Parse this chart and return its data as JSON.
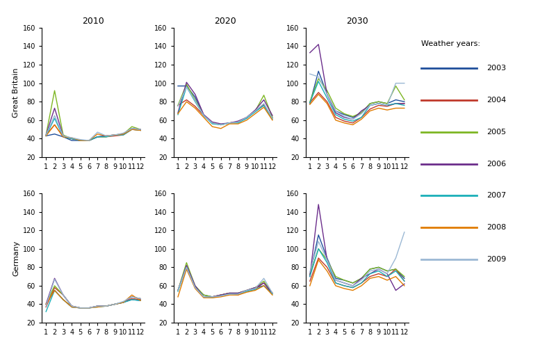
{
  "years": [
    "2010",
    "2020",
    "2030"
  ],
  "regions": [
    "Great Britain",
    "Germany"
  ],
  "weather_years": [
    "2003",
    "2004",
    "2005",
    "2006",
    "2007",
    "2008",
    "2009"
  ],
  "colors": {
    "2003": "#1F4E9B",
    "2004": "#C0392B",
    "2005": "#7DB623",
    "2006": "#6B2D8B",
    "2007": "#1AAFB8",
    "2008": "#E07B00",
    "2009": "#9BB8D4"
  },
  "ylim": [
    20,
    160
  ],
  "yticks": [
    20,
    40,
    60,
    80,
    100,
    120,
    140,
    160
  ],
  "xticks": [
    1,
    2,
    3,
    4,
    5,
    6,
    7,
    8,
    9,
    10,
    11,
    12
  ],
  "data": {
    "Great Britain": {
      "2010": {
        "2003": [
          43,
          45,
          42,
          38,
          38,
          38,
          42,
          43,
          44,
          45,
          51,
          49
        ],
        "2004": [
          44,
          55,
          42,
          40,
          38,
          38,
          42,
          42,
          43,
          44,
          50,
          49
        ],
        "2005": [
          44,
          92,
          44,
          40,
          38,
          38,
          42,
          42,
          44,
          45,
          53,
          50
        ],
        "2006": [
          44,
          73,
          43,
          40,
          38,
          38,
          42,
          43,
          44,
          45,
          51,
          50
        ],
        "2007": [
          43,
          62,
          42,
          40,
          38,
          38,
          42,
          42,
          44,
          44,
          50,
          49
        ],
        "2008": [
          43,
          55,
          42,
          41,
          38,
          38,
          45,
          43,
          44,
          45,
          50,
          49
        ],
        "2009": [
          44,
          65,
          43,
          41,
          39,
          38,
          47,
          43,
          44,
          46,
          51,
          50
        ]
      },
      "2020": {
        "2003": [
          97,
          97,
          85,
          65,
          57,
          55,
          57,
          58,
          62,
          70,
          76,
          63
        ],
        "2004": [
          76,
          82,
          75,
          65,
          57,
          55,
          57,
          58,
          63,
          70,
          77,
          62
        ],
        "2005": [
          76,
          99,
          82,
          65,
          57,
          55,
          57,
          58,
          63,
          70,
          87,
          63
        ],
        "2006": [
          68,
          101,
          88,
          66,
          58,
          56,
          57,
          59,
          63,
          71,
          82,
          65
        ],
        "2007": [
          66,
          96,
          80,
          65,
          56,
          55,
          57,
          57,
          62,
          69,
          76,
          61
        ],
        "2008": [
          67,
          80,
          73,
          63,
          53,
          51,
          56,
          56,
          60,
          67,
          74,
          60
        ],
        "2009": [
          75,
          96,
          81,
          65,
          57,
          55,
          57,
          58,
          63,
          70,
          78,
          62
        ]
      },
      "2030": {
        "2003": [
          78,
          113,
          88,
          70,
          66,
          63,
          68,
          78,
          80,
          78,
          82,
          80
        ],
        "2004": [
          79,
          90,
          80,
          63,
          59,
          57,
          63,
          72,
          76,
          75,
          78,
          78
        ],
        "2005": [
          80,
          105,
          92,
          73,
          67,
          64,
          68,
          78,
          80,
          78,
          97,
          82
        ],
        "2006": [
          133,
          142,
          88,
          68,
          63,
          61,
          70,
          76,
          78,
          76,
          78,
          78
        ],
        "2007": [
          79,
          102,
          84,
          66,
          61,
          59,
          63,
          76,
          78,
          76,
          78,
          76
        ],
        "2008": [
          77,
          88,
          78,
          60,
          57,
          55,
          61,
          70,
          73,
          71,
          73,
          73
        ],
        "2009": [
          110,
          107,
          88,
          70,
          64,
          61,
          67,
          76,
          78,
          76,
          100,
          100
        ]
      }
    },
    "Germany": {
      "2010": {
        "2003": [
          40,
          55,
          45,
          37,
          36,
          36,
          38,
          38,
          40,
          42,
          45,
          44
        ],
        "2004": [
          37,
          58,
          50,
          38,
          36,
          36,
          38,
          38,
          40,
          42,
          46,
          45
        ],
        "2005": [
          40,
          60,
          50,
          38,
          36,
          36,
          38,
          38,
          40,
          42,
          48,
          46
        ],
        "2006": [
          40,
          68,
          50,
          38,
          36,
          36,
          38,
          38,
          40,
          42,
          48,
          46
        ],
        "2007": [
          32,
          55,
          45,
          37,
          36,
          36,
          37,
          38,
          40,
          42,
          45,
          44
        ],
        "2008": [
          40,
          55,
          45,
          37,
          36,
          36,
          37,
          38,
          40,
          42,
          50,
          44
        ],
        "2009": [
          38,
          67,
          50,
          38,
          36,
          36,
          38,
          38,
          40,
          43,
          48,
          46
        ]
      },
      "2020": {
        "2003": [
          55,
          80,
          58,
          50,
          48,
          50,
          52,
          52,
          55,
          58,
          60,
          52
        ],
        "2004": [
          55,
          80,
          58,
          48,
          48,
          50,
          52,
          50,
          55,
          57,
          63,
          52
        ],
        "2005": [
          55,
          85,
          60,
          50,
          48,
          50,
          52,
          52,
          55,
          58,
          65,
          52
        ],
        "2006": [
          55,
          82,
          60,
          48,
          48,
          50,
          52,
          52,
          55,
          58,
          63,
          52
        ],
        "2007": [
          54,
          80,
          58,
          48,
          47,
          49,
          51,
          51,
          54,
          56,
          60,
          51
        ],
        "2008": [
          48,
          78,
          57,
          47,
          47,
          48,
          50,
          50,
          53,
          55,
          60,
          50
        ],
        "2009": [
          55,
          80,
          58,
          48,
          48,
          49,
          51,
          51,
          55,
          57,
          68,
          52
        ]
      },
      "2030": {
        "2003": [
          72,
          115,
          90,
          68,
          66,
          63,
          68,
          78,
          80,
          76,
          78,
          68
        ],
        "2004": [
          65,
          90,
          80,
          63,
          60,
          58,
          63,
          70,
          73,
          70,
          78,
          65
        ],
        "2005": [
          72,
          100,
          88,
          70,
          66,
          63,
          68,
          78,
          80,
          76,
          78,
          70
        ],
        "2006": [
          70,
          148,
          88,
          66,
          63,
          60,
          68,
          73,
          78,
          73,
          55,
          62
        ],
        "2007": [
          70,
          100,
          85,
          63,
          60,
          58,
          63,
          73,
          76,
          70,
          76,
          65
        ],
        "2008": [
          60,
          88,
          76,
          60,
          57,
          55,
          60,
          68,
          70,
          66,
          70,
          60
        ],
        "2009": [
          75,
          108,
          88,
          66,
          63,
          60,
          66,
          76,
          78,
          73,
          90,
          118
        ]
      }
    }
  },
  "legend_title": "Weather years:",
  "figsize": [
    8.0,
    4.99
  ],
  "dpi": 100
}
